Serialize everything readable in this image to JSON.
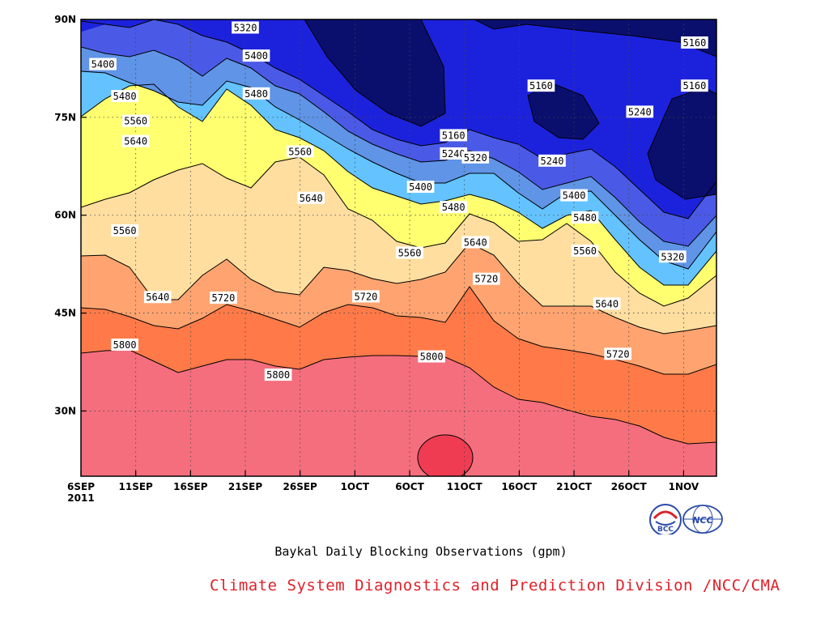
{
  "chart_data": {
    "type": "contour",
    "title": "Baykal Daily Blocking Observations (gpm)",
    "credit": "Climate System Diagnostics and Prediction Division /NCC/CMA",
    "x_ticks": [
      "6SEP",
      "11SEP",
      "16SEP",
      "21SEP",
      "26SEP",
      "1OCT",
      "6OCT",
      "11OCT",
      "16OCT",
      "21OCT",
      "26OCT",
      "1NOV"
    ],
    "x_year": "2011",
    "y_ticks": [
      "30N",
      "45N",
      "60N",
      "75N",
      "90N"
    ],
    "xlim": [
      "2011-09-06",
      "2011-11-03"
    ],
    "ylim": [
      20,
      90
    ],
    "grid": "dotted",
    "contour_levels": [
      5160,
      5240,
      5320,
      5400,
      5480,
      5560,
      5640,
      5720,
      5800,
      5880
    ],
    "level_colors": [
      "#0a0f6e",
      "#1c22dc",
      "#4a5ae6",
      "#5f94e6",
      "#64c3ff",
      "#ffff70",
      "#ffdea0",
      "#ffa470",
      "#ff7a48",
      "#f56e7e",
      "#f03c52"
    ],
    "contour_labels": [
      {
        "value": "5320",
        "date": "2011-09-21",
        "lat": 88.7
      },
      {
        "value": "5400",
        "date": "2011-09-08",
        "lat": 83.1
      },
      {
        "value": "5400",
        "date": "2011-09-22",
        "lat": 84.4
      },
      {
        "value": "5480",
        "date": "2011-09-10",
        "lat": 78.2
      },
      {
        "value": "5480",
        "date": "2011-09-22",
        "lat": 78.6
      },
      {
        "value": "5560",
        "date": "2011-09-11",
        "lat": 74.4
      },
      {
        "value": "5640",
        "date": "2011-09-11",
        "lat": 71.3
      },
      {
        "value": "5560",
        "date": "2011-09-26",
        "lat": 69.7
      },
      {
        "value": "5640",
        "date": "2011-09-27",
        "lat": 62.6
      },
      {
        "value": "5560",
        "date": "2011-09-10",
        "lat": 57.6
      },
      {
        "value": "5640",
        "date": "2011-09-13",
        "lat": 47.4
      },
      {
        "value": "5720",
        "date": "2011-09-19",
        "lat": 47.3
      },
      {
        "value": "5800",
        "date": "2011-09-10",
        "lat": 40.1
      },
      {
        "value": "5800",
        "date": "2011-09-24",
        "lat": 35.5
      },
      {
        "value": "5720",
        "date": "2011-10-02",
        "lat": 47.5
      },
      {
        "value": "5560",
        "date": "2011-10-06",
        "lat": 54.2
      },
      {
        "value": "5480",
        "date": "2011-10-10",
        "lat": 61.2
      },
      {
        "value": "5400",
        "date": "2011-10-07",
        "lat": 64.3
      },
      {
        "value": "5240",
        "date": "2011-10-10",
        "lat": 69.4
      },
      {
        "value": "5160",
        "date": "2011-10-10",
        "lat": 72.2
      },
      {
        "value": "5320",
        "date": "2011-10-12",
        "lat": 68.8
      },
      {
        "value": "5640",
        "date": "2011-10-12",
        "lat": 55.8
      },
      {
        "value": "5720",
        "date": "2011-10-13",
        "lat": 50.2
      },
      {
        "value": "5800",
        "date": "2011-10-08",
        "lat": 38.3
      },
      {
        "value": "5160",
        "date": "2011-10-18",
        "lat": 79.8
      },
      {
        "value": "5240",
        "date": "2011-10-19",
        "lat": 68.3
      },
      {
        "value": "5400",
        "date": "2011-10-21",
        "lat": 63.0
      },
      {
        "value": "5480",
        "date": "2011-10-22",
        "lat": 59.6
      },
      {
        "value": "5560",
        "date": "2011-10-22",
        "lat": 54.5
      },
      {
        "value": "5640",
        "date": "2011-10-24",
        "lat": 46.4
      },
      {
        "value": "5720",
        "date": "2011-10-25",
        "lat": 38.7
      },
      {
        "value": "5240",
        "date": "2011-10-27",
        "lat": 75.8
      },
      {
        "value": "5320",
        "date": "2011-10-30",
        "lat": 53.6
      },
      {
        "value": "5160",
        "date": "2011-11-01",
        "lat": 86.4
      },
      {
        "value": "5160",
        "date": "2011-11-01",
        "lat": 79.8
      }
    ]
  },
  "logos": [
    {
      "name": "BCC",
      "label": "BCC"
    },
    {
      "name": "NCC",
      "label": "NCC"
    }
  ]
}
